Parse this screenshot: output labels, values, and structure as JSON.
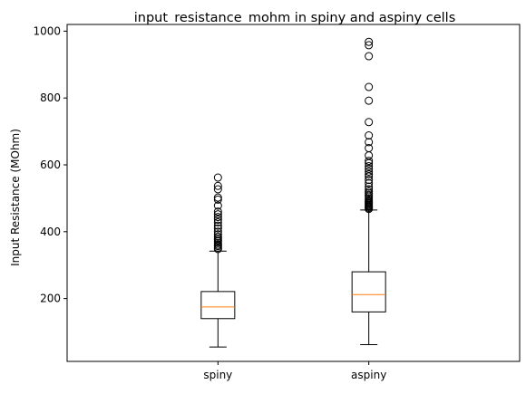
{
  "chart_data": {
    "type": "box",
    "title": "input_resistance_mohm in spiny and aspiny cells",
    "xlabel": "",
    "ylabel": "Input Resistance (MOhm)",
    "categories": [
      "spiny",
      "aspiny"
    ],
    "ylim": [
      12,
      1020
    ],
    "yticks": [
      200,
      400,
      600,
      800,
      1000
    ],
    "grid": false,
    "legend": "none",
    "colors": {
      "box": "#000000",
      "median": "#ff7f0e",
      "background": "#ffffff"
    },
    "boxes": [
      {
        "category": "spiny",
        "whisker_low": 55,
        "q1": 140,
        "median": 175,
        "q3": 221,
        "whisker_high": 342,
        "outliers": [
          348,
          352,
          357,
          361,
          366,
          371,
          375,
          380,
          385,
          392,
          400,
          410,
          418,
          428,
          436,
          444,
          452,
          460,
          478,
          496,
          502,
          527,
          537,
          562
        ]
      },
      {
        "category": "aspiny",
        "whisker_low": 62,
        "q1": 160,
        "median": 212,
        "q3": 280,
        "whisker_high": 465,
        "outliers": [
          468,
          471,
          474,
          477,
          480,
          483,
          486,
          489,
          492,
          496,
          500,
          505,
          510,
          515,
          520,
          527,
          535,
          545,
          555,
          565,
          572,
          580,
          588,
          596,
          605,
          612,
          628,
          650,
          668,
          688,
          728,
          792,
          833,
          925,
          958,
          968
        ]
      }
    ]
  }
}
